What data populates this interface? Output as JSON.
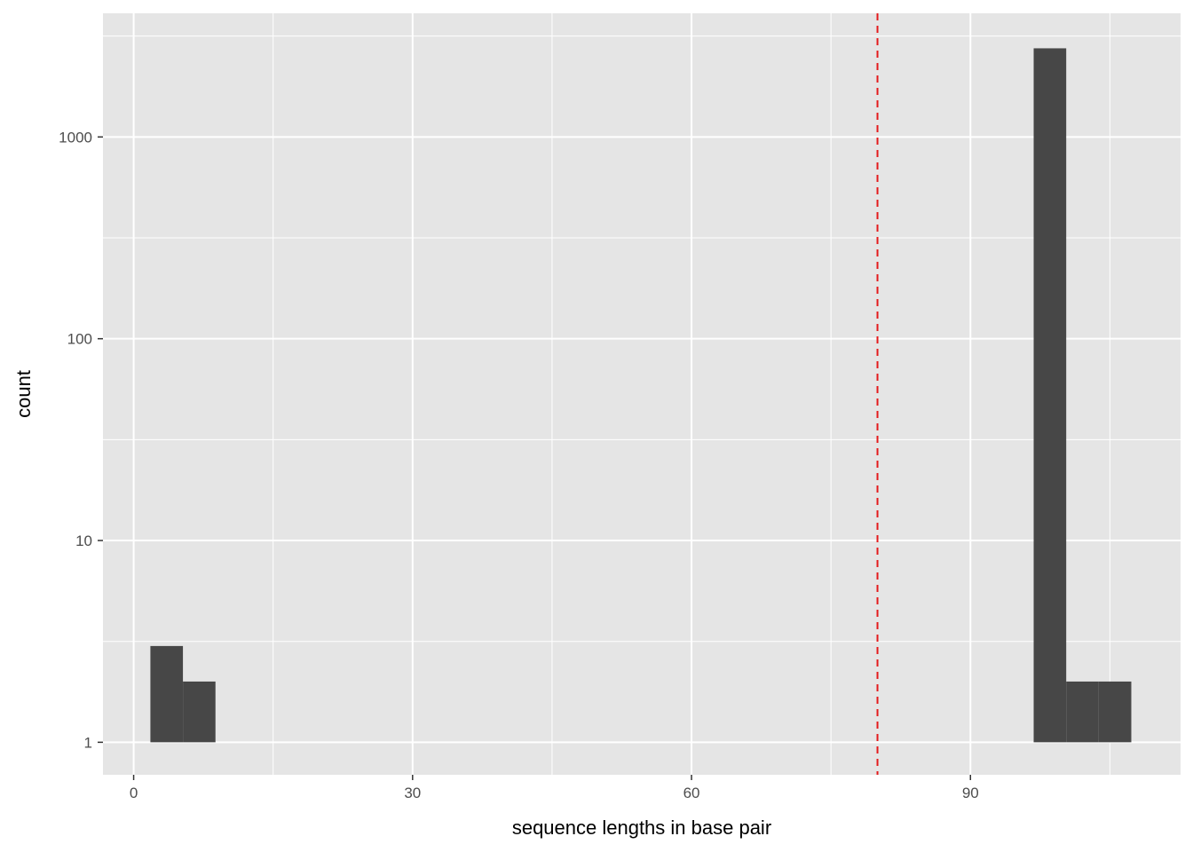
{
  "chart_data": {
    "type": "bar",
    "subtype": "histogram",
    "xlabel": "sequence lengths in base pair",
    "ylabel": "count",
    "xlim": [
      -3.3,
      112.6
    ],
    "ylim": [
      0.69,
      4100
    ],
    "y_scale": "log10",
    "x_ticks": [
      0,
      30,
      60,
      90
    ],
    "x_tick_labels": [
      "0",
      "30",
      "60",
      "90"
    ],
    "y_ticks": [
      1,
      10,
      100,
      1000
    ],
    "y_tick_labels": [
      "1",
      "10",
      "100",
      "1000"
    ],
    "grid": true,
    "bins": [
      {
        "x0": 1.8,
        "x1": 5.3,
        "count": 3
      },
      {
        "x0": 5.3,
        "x1": 8.8,
        "count": 2
      },
      {
        "x0": 96.8,
        "x1": 100.3,
        "count": 2750
      },
      {
        "x0": 100.3,
        "x1": 103.8,
        "count": 2
      },
      {
        "x0": 103.8,
        "x1": 107.3,
        "count": 2
      }
    ],
    "vline": {
      "x": 80,
      "color": "#e41a1c",
      "style": "dashed"
    },
    "colors": {
      "panel": "#e5e5e5",
      "bar": "#474747",
      "grid": "#ffffff"
    }
  }
}
